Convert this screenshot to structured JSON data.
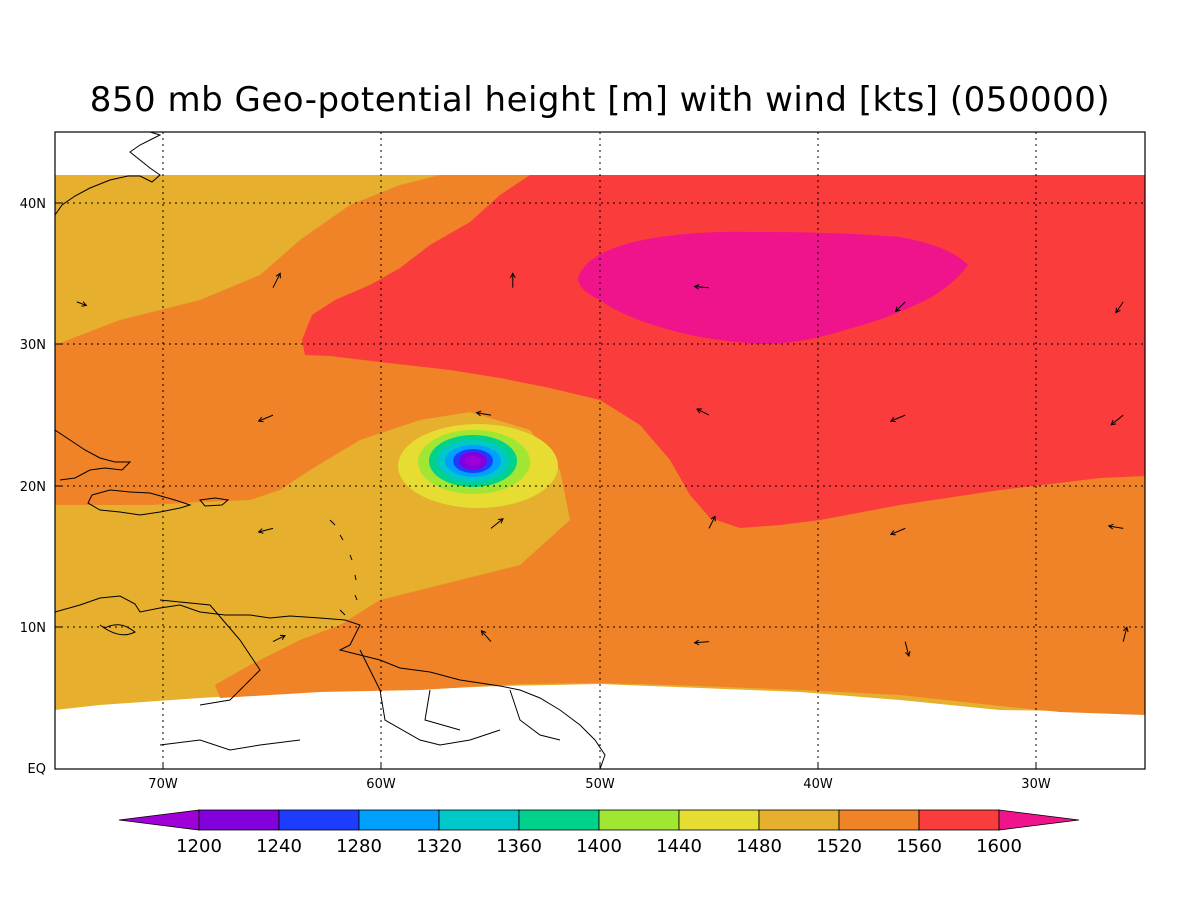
{
  "title": "850 mb Geo-potential height [m] with wind [kts] (050000)",
  "chart_data": {
    "type": "heatmap",
    "title": "850 mb Geo-potential height [m] with wind [kts] (050000)",
    "variable": "850 mb geopotential height",
    "units": "m",
    "overlay": "wind vectors",
    "overlay_units": "kts",
    "lon_range": [
      -75,
      -25
    ],
    "lat_range": [
      0,
      45
    ],
    "lon_ticks": [
      "70W",
      "60W",
      "50W",
      "40W",
      "30W"
    ],
    "lat_ticks": [
      "EQ",
      "10N",
      "20N",
      "30N",
      "40N"
    ],
    "grid": true,
    "colorbar": {
      "levels": [
        "1200",
        "1240",
        "1280",
        "1320",
        "1360",
        "1400",
        "1440",
        "1480",
        "1520",
        "1560",
        "1600"
      ],
      "colors": [
        "#a000d8",
        "#8200dc",
        "#1e3cff",
        "#00a0ff",
        "#00c8c8",
        "#00d28c",
        "#a0e632",
        "#e6dc32",
        "#e6af2d",
        "#f08228",
        "#fa3c3c",
        "#f0148c"
      ]
    },
    "features": {
      "low_center_lon_lat": [
        -56,
        21.8
      ],
      "high_center_lon_lat": [
        -41,
        34.5
      ]
    },
    "wind_vectors": [
      {
        "lon": -65,
        "lat": 34,
        "u": 0.6,
        "v": 1.2
      },
      {
        "lon": -54,
        "lat": 34,
        "u": 0,
        "v": 1.2
      },
      {
        "lon": -45,
        "lat": 34,
        "u": -1.2,
        "v": 0.1
      },
      {
        "lon": -36,
        "lat": 33,
        "u": -0.8,
        "v": -0.8
      },
      {
        "lon": -26,
        "lat": 33,
        "u": -0.6,
        "v": -0.9
      },
      {
        "lon": -74,
        "lat": 33,
        "u": 0.8,
        "v": -0.3
      },
      {
        "lon": -65,
        "lat": 25,
        "u": -1.2,
        "v": -0.5
      },
      {
        "lon": -55,
        "lat": 25,
        "u": -1.2,
        "v": 0.2
      },
      {
        "lon": -45,
        "lat": 25,
        "u": -1.0,
        "v": 0.5
      },
      {
        "lon": -36,
        "lat": 25,
        "u": -1.2,
        "v": -0.5
      },
      {
        "lon": -26,
        "lat": 25,
        "u": -1.0,
        "v": -0.8
      },
      {
        "lon": -65,
        "lat": 17,
        "u": -1.2,
        "v": -0.3
      },
      {
        "lon": -55,
        "lat": 17,
        "u": 1.0,
        "v": 0.8
      },
      {
        "lon": -45,
        "lat": 17,
        "u": 0.5,
        "v": 1.0
      },
      {
        "lon": -36,
        "lat": 17,
        "u": -1.2,
        "v": -0.5
      },
      {
        "lon": -26,
        "lat": 17,
        "u": -1.2,
        "v": 0.2
      },
      {
        "lon": -65,
        "lat": 9,
        "u": 1.0,
        "v": 0.5
      },
      {
        "lon": -55,
        "lat": 9,
        "u": -0.8,
        "v": 0.9
      },
      {
        "lon": -45,
        "lat": 9,
        "u": -1.2,
        "v": -0.1
      },
      {
        "lon": -36,
        "lat": 9,
        "u": 0.3,
        "v": -1.2
      },
      {
        "lon": -26,
        "lat": 9,
        "u": 0.3,
        "v": 1.2
      }
    ]
  }
}
